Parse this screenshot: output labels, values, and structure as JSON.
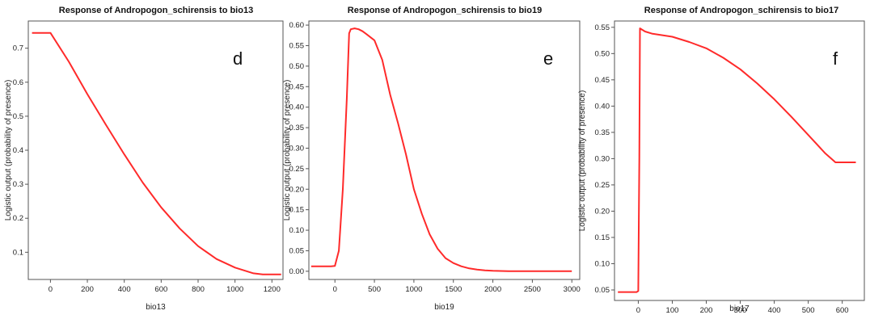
{
  "chart_data": [
    {
      "type": "line",
      "title": "Response of Andropogon_schirensis to bio13",
      "xlabel": "bio13",
      "ylabel": "Logistic output (probability of presence)",
      "panel_label": "d",
      "xlim": [
        -120,
        1260
      ],
      "ylim": [
        0.02,
        0.78
      ],
      "xticks": [
        "0",
        "200",
        "400",
        "600",
        "800",
        "1000",
        "1200"
      ],
      "yticks": [
        "0.1",
        "0.2",
        "0.3",
        "0.4",
        "0.5",
        "0.6",
        "0.7"
      ],
      "line_color": "#ff2a2a",
      "series": [
        {
          "x": [
            -100,
            0,
            100,
            200,
            300,
            400,
            500,
            600,
            700,
            800,
            900,
            1000,
            1100,
            1150,
            1250
          ],
          "y": [
            0.745,
            0.745,
            0.66,
            0.565,
            0.475,
            0.388,
            0.305,
            0.232,
            0.17,
            0.118,
            0.08,
            0.055,
            0.038,
            0.035,
            0.035
          ]
        }
      ]
    },
    {
      "type": "line",
      "title": "Response of Andropogon_schirensis to bio19",
      "xlabel": "bio19",
      "ylabel": "Logistic output (probability of presence)",
      "panel_label": "e",
      "xlim": [
        -330,
        3100
      ],
      "ylim": [
        -0.02,
        0.61
      ],
      "xticks": [
        "0",
        "500",
        "1000",
        "1500",
        "2000",
        "2500",
        "3000"
      ],
      "yticks": [
        "0.00",
        "0.05",
        "0.10",
        "0.15",
        "0.20",
        "0.25",
        "0.30",
        "0.35",
        "0.40",
        "0.45",
        "0.50",
        "0.55",
        "0.60"
      ],
      "line_color": "#ff2a2a",
      "series": [
        {
          "x": [
            -300,
            -50,
            0,
            50,
            100,
            150,
            180,
            200,
            250,
            300,
            350,
            400,
            500,
            600,
            700,
            800,
            900,
            1000,
            1100,
            1200,
            1300,
            1400,
            1500,
            1600,
            1700,
            1800,
            1900,
            2000,
            2200,
            2500,
            3000
          ],
          "y": [
            0.012,
            0.012,
            0.013,
            0.05,
            0.2,
            0.42,
            0.58,
            0.59,
            0.592,
            0.59,
            0.585,
            0.578,
            0.563,
            0.515,
            0.43,
            0.36,
            0.285,
            0.2,
            0.14,
            0.09,
            0.055,
            0.032,
            0.02,
            0.012,
            0.007,
            0.004,
            0.002,
            0.001,
            0.0,
            0.0,
            0.0
          ]
        }
      ]
    },
    {
      "type": "line",
      "title": "Response of Andropogon_schirensis to bio17",
      "xlabel": "bio17",
      "ylabel": "Logistic output (probability of presence)",
      "panel_label": "f",
      "xlim": [
        -70,
        665
      ],
      "ylim": [
        0.03,
        0.562
      ],
      "xticks": [
        "0",
        "100",
        "200",
        "300",
        "400",
        "500",
        "600"
      ],
      "yticks": [
        "0.05",
        "0.10",
        "0.15",
        "0.20",
        "0.25",
        "0.30",
        "0.35",
        "0.40",
        "0.45",
        "0.50",
        "0.55"
      ],
      "line_color": "#ff2a2a",
      "series": [
        {
          "x": [
            -60,
            -5,
            0,
            3,
            5,
            20,
            40,
            100,
            150,
            200,
            250,
            300,
            350,
            400,
            450,
            500,
            550,
            580,
            590,
            640
          ],
          "y": [
            0.046,
            0.046,
            0.048,
            0.3,
            0.548,
            0.542,
            0.538,
            0.532,
            0.522,
            0.51,
            0.492,
            0.47,
            0.443,
            0.413,
            0.38,
            0.345,
            0.31,
            0.293,
            0.293,
            0.293
          ]
        }
      ]
    }
  ]
}
